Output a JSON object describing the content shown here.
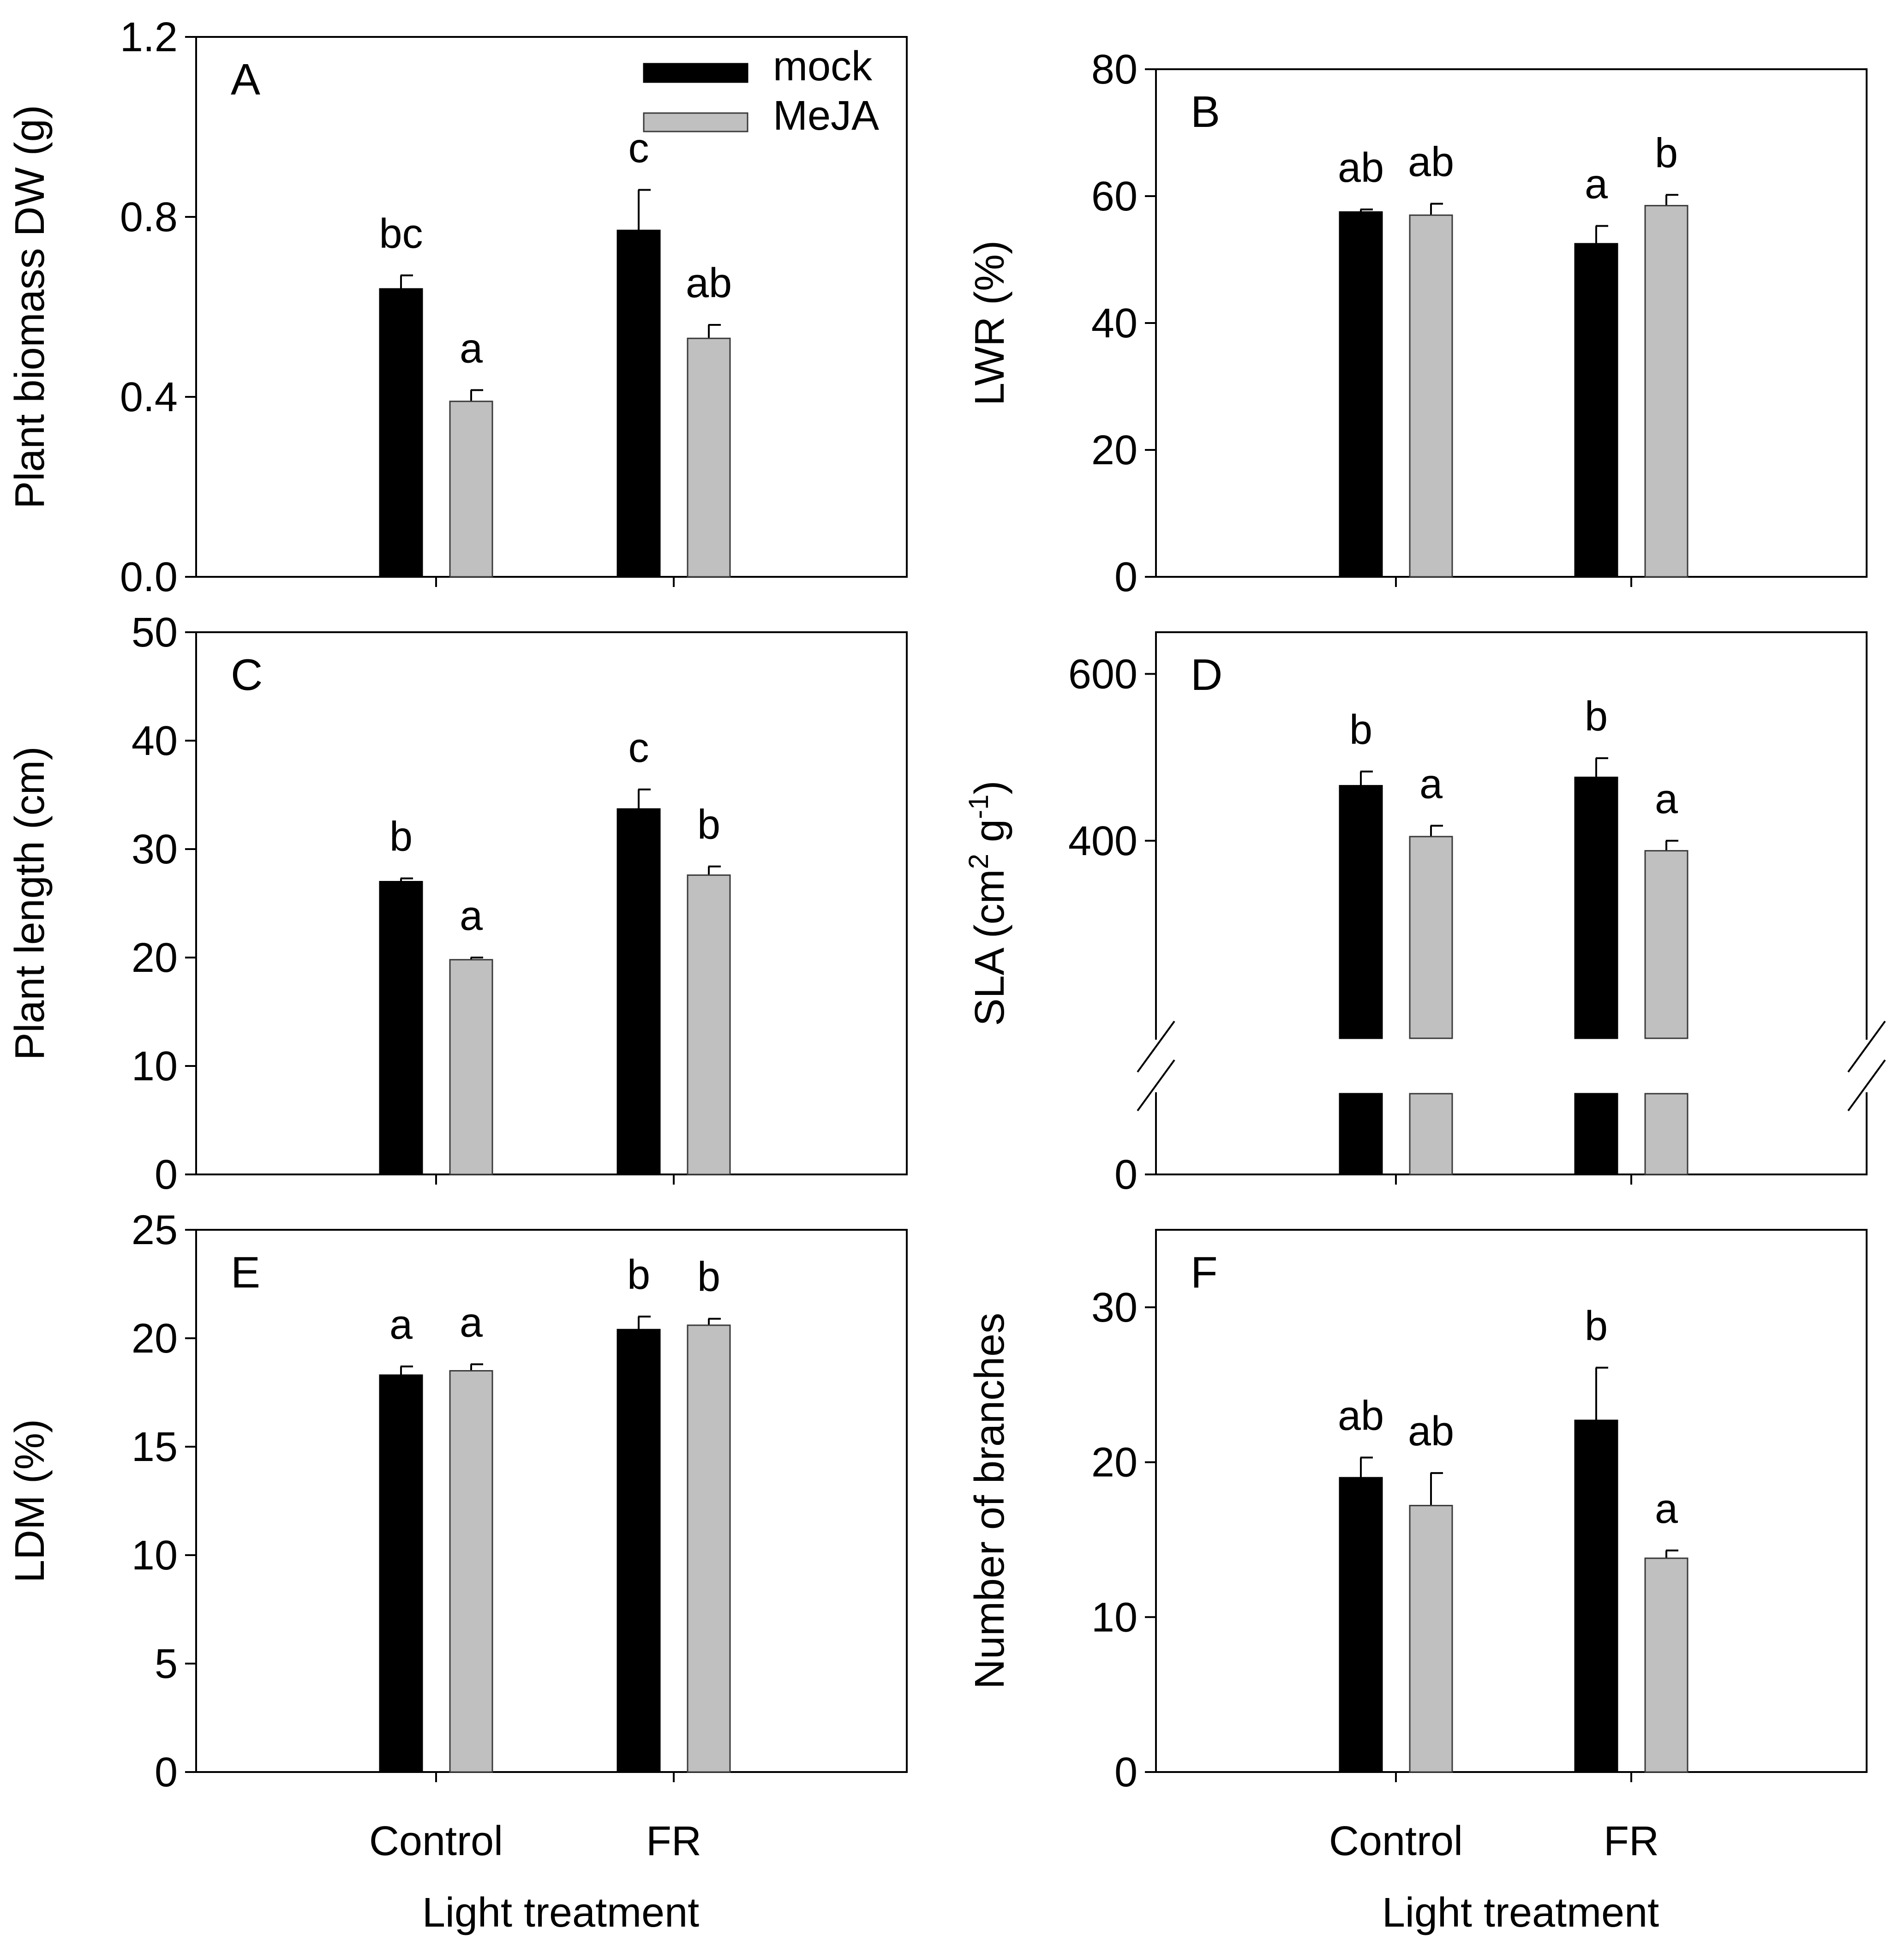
{
  "colors": {
    "mock": "#000000",
    "MeJA": "#c0c0c0"
  },
  "legend": {
    "placement": "top-right of panel A",
    "entries": [
      "mock",
      "MeJA"
    ]
  },
  "chart_data": [
    {
      "panel": "A",
      "type": "bar",
      "categories": [
        "Control",
        "FR"
      ],
      "xlabel": "",
      "ylabel": "Plant biomass DW (g)",
      "ylim": [
        0,
        1.2
      ],
      "yticks": [
        0,
        0.4,
        0.8,
        1.2
      ],
      "ytick_labels": [
        "0.0",
        "0.4",
        "0.8",
        "1.2"
      ],
      "series": [
        {
          "name": "mock",
          "values": [
            0.64,
            0.77
          ],
          "errors": [
            0.03,
            0.09
          ],
          "letters": [
            "bc",
            "c"
          ]
        },
        {
          "name": "MeJA",
          "values": [
            0.39,
            0.53
          ],
          "errors": [
            0.025,
            0.03
          ],
          "letters": [
            "a",
            "ab"
          ]
        }
      ]
    },
    {
      "panel": "B",
      "type": "bar",
      "categories": [
        "Control",
        "FR"
      ],
      "xlabel": "",
      "ylabel": "LWR (%)",
      "ylim": [
        0,
        80
      ],
      "yticks": [
        0,
        20,
        40,
        60,
        80
      ],
      "ytick_labels": [
        "0",
        "20",
        "40",
        "60",
        "80"
      ],
      "series": [
        {
          "name": "mock",
          "values": [
            57.5,
            52.5
          ],
          "errors": [
            0.4,
            2.8
          ],
          "letters": [
            "ab",
            "a"
          ]
        },
        {
          "name": "MeJA",
          "values": [
            57.0,
            58.5
          ],
          "errors": [
            1.8,
            1.7
          ],
          "letters": [
            "ab",
            "b"
          ]
        }
      ]
    },
    {
      "panel": "C",
      "type": "bar",
      "categories": [
        "Control",
        "FR"
      ],
      "xlabel": "",
      "ylabel": "Plant length (cm)",
      "ylim": [
        0,
        50
      ],
      "yticks": [
        0,
        10,
        20,
        30,
        40,
        50
      ],
      "ytick_labels": [
        "0",
        "10",
        "20",
        "30",
        "40",
        "50"
      ],
      "series": [
        {
          "name": "mock",
          "values": [
            27.0,
            33.7
          ],
          "errors": [
            0.3,
            1.8
          ],
          "letters": [
            "b",
            "c"
          ]
        },
        {
          "name": "MeJA",
          "values": [
            19.8,
            27.6
          ],
          "errors": [
            0.2,
            0.8
          ],
          "letters": [
            "a",
            "b"
          ]
        }
      ]
    },
    {
      "panel": "D",
      "type": "bar",
      "categories": [
        "Control",
        "FR"
      ],
      "xlabel": "",
      "ylabel": "SLA (cm² g⁻¹)",
      "ylim": [
        0,
        650
      ],
      "axis_break": true,
      "yticks": [
        0,
        400,
        600
      ],
      "ytick_labels": [
        "0",
        "400",
        "600"
      ],
      "series": [
        {
          "name": "mock",
          "values": [
            466,
            476
          ],
          "errors": [
            17,
            23
          ],
          "letters": [
            "b",
            "b"
          ]
        },
        {
          "name": "MeJA",
          "values": [
            405,
            388
          ],
          "errors": [
            13,
            12
          ],
          "letters": [
            "a",
            "a"
          ]
        }
      ]
    },
    {
      "panel": "E",
      "type": "bar",
      "categories": [
        "Control",
        "FR"
      ],
      "xlabel": "Light treatment",
      "ylabel": "LDM (%)",
      "ylim": [
        0,
        25
      ],
      "yticks": [
        0,
        5,
        10,
        15,
        20,
        25
      ],
      "ytick_labels": [
        "0",
        "5",
        "10",
        "15",
        "20",
        "25"
      ],
      "series": [
        {
          "name": "mock",
          "values": [
            18.3,
            20.4
          ],
          "errors": [
            0.4,
            0.6
          ],
          "letters": [
            "a",
            "b"
          ]
        },
        {
          "name": "MeJA",
          "values": [
            18.5,
            20.6
          ],
          "errors": [
            0.3,
            0.3
          ],
          "letters": [
            "a",
            "b"
          ]
        }
      ]
    },
    {
      "panel": "F",
      "type": "bar",
      "categories": [
        "Control",
        "FR"
      ],
      "xlabel": "Light treatment",
      "ylabel": "Number of branches",
      "ylim": [
        0,
        35
      ],
      "yticks": [
        0,
        10,
        20,
        30
      ],
      "ytick_labels": [
        "0",
        "10",
        "20",
        "30"
      ],
      "series": [
        {
          "name": "mock",
          "values": [
            19.0,
            22.7
          ],
          "errors": [
            1.3,
            3.4
          ],
          "letters": [
            "ab",
            "b"
          ]
        },
        {
          "name": "MeJA",
          "values": [
            17.2,
            13.8
          ],
          "errors": [
            2.1,
            0.5
          ],
          "letters": [
            "ab",
            "a"
          ]
        }
      ]
    }
  ]
}
